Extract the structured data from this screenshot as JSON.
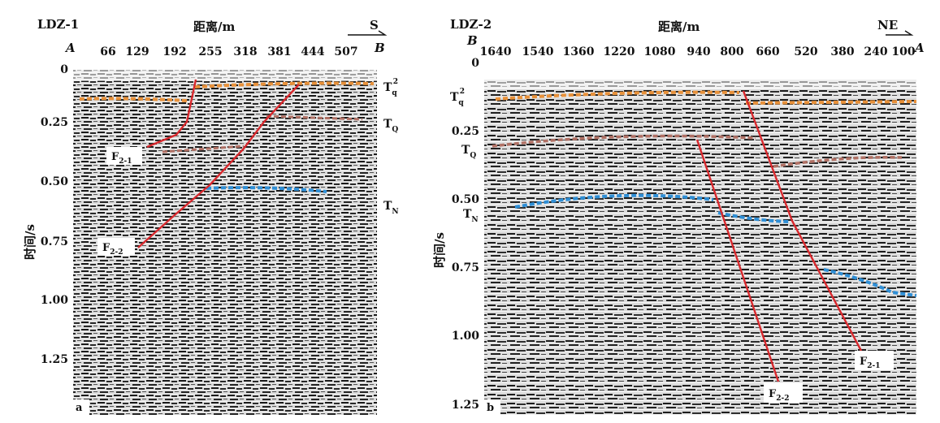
{
  "panels": [
    {
      "id": "a",
      "line": "LDZ-1",
      "start_end": [
        "A",
        "B"
      ],
      "direction": "S",
      "x_axis_label": "距离/m",
      "y_axis_label": "时间/s",
      "x_ticks": [
        "66",
        "129",
        "192",
        "255",
        "318",
        "381",
        "444",
        "507"
      ],
      "y_ticks": [
        "0",
        "0.25",
        "0.50",
        "0.75",
        "1.00",
        "1.25"
      ],
      "horizons": [
        {
          "main": "T",
          "sub": "q",
          "sup": "2",
          "color": "#e8913a"
        },
        {
          "main": "T",
          "sub": "Q",
          "sup": "",
          "color": "#b07064"
        },
        {
          "main": "T",
          "sub": "N",
          "sup": "",
          "color": "#2f8fd6"
        }
      ],
      "faults": [
        {
          "main": "F",
          "sub": "2-1",
          "color": "#d8282d"
        },
        {
          "main": "F",
          "sub": "2-2",
          "color": "#d8282d"
        }
      ],
      "panel_label": "a"
    },
    {
      "id": "b",
      "line": "LDZ-2",
      "start_end": [
        "B",
        "A"
      ],
      "direction": "NE",
      "x_axis_label": "距离/m",
      "y_axis_label": "时间/s",
      "x_ticks": [
        "1640",
        "1540",
        "1360",
        "1220",
        "1080",
        "940",
        "800",
        "660",
        "520",
        "380",
        "240",
        "100"
      ],
      "y_ticks": [
        "0",
        "0.25",
        "0.50",
        "0.75",
        "1.00",
        "1.25"
      ],
      "horizons": [
        {
          "main": "T",
          "sub": "q",
          "sup": "2",
          "color": "#e8913a"
        },
        {
          "main": "T",
          "sub": "Q",
          "sup": "",
          "color": "#b07064"
        },
        {
          "main": "T",
          "sub": "N",
          "sup": "",
          "color": "#2f8fd6"
        }
      ],
      "faults": [
        {
          "main": "F",
          "sub": "2-1",
          "color": "#d8282d"
        },
        {
          "main": "F",
          "sub": "2-2",
          "color": "#d8282d"
        }
      ],
      "panel_label": "b"
    }
  ]
}
